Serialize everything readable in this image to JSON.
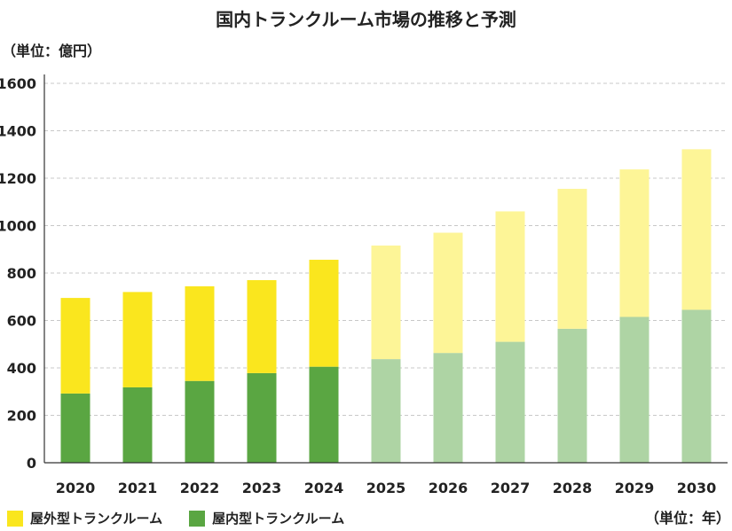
{
  "chart_data": {
    "type": "bar",
    "stacked": true,
    "title": "国内トランクルーム市場の推移と予測",
    "ylabel": "（単位：億円）",
    "xlabel": "（単位：年）",
    "categories": [
      "2020",
      "2021",
      "2022",
      "2023",
      "2024",
      "2025",
      "2026",
      "2027",
      "2028",
      "2029",
      "2030"
    ],
    "forecast_from": "2025",
    "ylim": [
      0,
      1600
    ],
    "yticks": [
      0,
      200,
      400,
      600,
      800,
      1000,
      1200,
      1400,
      1600
    ],
    "grid": true,
    "legend_position": "bottom-left",
    "series": [
      {
        "name": "屋内型トランクルーム",
        "values": [
          292,
          318,
          345,
          378,
          405,
          437,
          463,
          510,
          565,
          615,
          645
        ],
        "color": "#5aa642",
        "forecast_color": "#aed4a4"
      },
      {
        "name": "屋外型トランクルーム",
        "values": [
          403,
          402,
          399,
          392,
          451,
          479,
          507,
          550,
          590,
          622,
          677
        ],
        "color": "#fae61e",
        "forecast_color": "#fdf597"
      }
    ]
  }
}
